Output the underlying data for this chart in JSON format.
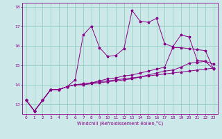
{
  "xlabel": "Windchill (Refroidissement éolien,°C)",
  "xlim": [
    -0.5,
    23.5
  ],
  "ylim": [
    12.5,
    18.2
  ],
  "yticks": [
    13,
    14,
    15,
    16,
    17,
    18
  ],
  "xticks": [
    0,
    1,
    2,
    3,
    4,
    5,
    6,
    7,
    8,
    9,
    10,
    11,
    12,
    13,
    14,
    15,
    16,
    17,
    18,
    19,
    20,
    21,
    22,
    23
  ],
  "bg_color": "#cce8e8",
  "grid_color": "#88ccbb",
  "line_color": "#880088",
  "curve1": [
    13.2,
    12.65,
    13.2,
    13.75,
    13.75,
    13.9,
    14.25,
    16.55,
    17.0,
    15.9,
    15.45,
    15.5,
    15.85,
    17.8,
    17.25,
    17.2,
    17.4,
    16.1,
    15.95,
    16.55,
    16.45,
    15.25,
    15.2,
    14.8
  ],
  "curve2": [
    13.2,
    12.65,
    13.2,
    13.75,
    13.75,
    13.9,
    14.0,
    14.0,
    14.1,
    14.15,
    14.2,
    14.25,
    14.3,
    14.35,
    14.4,
    14.45,
    14.5,
    14.55,
    14.6,
    14.65,
    14.7,
    14.75,
    14.8,
    14.85
  ],
  "curve3": [
    13.2,
    12.65,
    13.2,
    13.75,
    13.75,
    13.9,
    14.0,
    14.05,
    14.1,
    14.2,
    14.3,
    14.35,
    14.45,
    14.5,
    14.6,
    14.7,
    14.8,
    14.9,
    15.9,
    15.9,
    15.85,
    15.8,
    15.75,
    14.8
  ],
  "curve4": [
    13.2,
    12.65,
    13.2,
    13.75,
    13.75,
    13.9,
    14.0,
    14.0,
    14.05,
    14.1,
    14.15,
    14.2,
    14.25,
    14.3,
    14.4,
    14.5,
    14.6,
    14.7,
    14.75,
    14.9,
    15.1,
    15.15,
    15.2,
    15.05
  ]
}
